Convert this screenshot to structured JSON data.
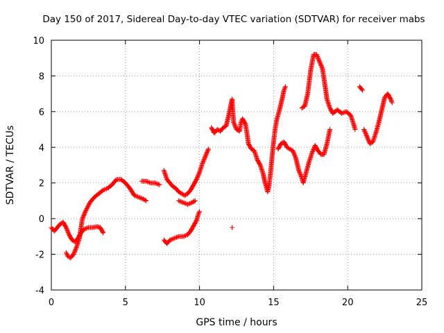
{
  "chart_data": {
    "type": "scatter",
    "title": "Day 150 of 2017, Sidereal Day-to-day VTEC variation (SDTVAR) for receiver mabs",
    "xlabel": "GPS time / hours",
    "ylabel": "SDTVAR / TECUs",
    "xlim": [
      0,
      25
    ],
    "ylim": [
      -4,
      10
    ],
    "xticks": [
      "0",
      "5",
      "10",
      "15",
      "20",
      "25"
    ],
    "yticks": [
      "-4",
      "-2",
      "0",
      "2",
      "4",
      "6",
      "8",
      "10"
    ],
    "grid": true,
    "marker": "+",
    "color": "#ff0000",
    "series": [
      {
        "name": "s1",
        "points": [
          [
            0.0,
            -0.5
          ],
          [
            0.2,
            -0.7
          ],
          [
            0.4,
            -0.5
          ],
          [
            0.6,
            -0.3
          ],
          [
            0.8,
            -0.2
          ],
          [
            1.0,
            -0.5
          ],
          [
            1.2,
            -0.9
          ],
          [
            1.4,
            -1.2
          ],
          [
            1.6,
            -1.3
          ],
          [
            1.8,
            -1.1
          ],
          [
            2.0,
            -0.8
          ],
          [
            2.2,
            -0.6
          ],
          [
            2.5,
            -0.5
          ],
          [
            2.8,
            -0.5
          ],
          [
            3.1,
            -0.45
          ],
          [
            3.3,
            -0.5
          ],
          [
            3.5,
            -0.8
          ]
        ]
      },
      {
        "name": "s2",
        "points": [
          [
            1.0,
            -1.9
          ],
          [
            1.1,
            -2.1
          ],
          [
            1.3,
            -2.2
          ],
          [
            1.5,
            -2.0
          ],
          [
            1.7,
            -1.6
          ],
          [
            1.9,
            -1.1
          ],
          [
            2.0,
            -0.5
          ],
          [
            2.1,
            0.0
          ],
          [
            2.3,
            0.4
          ],
          [
            2.6,
            0.9
          ],
          [
            2.9,
            1.2
          ],
          [
            3.2,
            1.4
          ],
          [
            3.5,
            1.6
          ],
          [
            3.8,
            1.7
          ],
          [
            4.1,
            1.9
          ],
          [
            4.4,
            2.2
          ],
          [
            4.7,
            2.2
          ],
          [
            5.0,
            2.0
          ],
          [
            5.3,
            1.7
          ],
          [
            5.6,
            1.3
          ],
          [
            5.9,
            1.2
          ],
          [
            6.2,
            1.1
          ],
          [
            6.4,
            1.0
          ]
        ]
      },
      {
        "name": "s3",
        "points": [
          [
            6.1,
            2.1
          ],
          [
            6.4,
            2.1
          ],
          [
            6.7,
            2.0
          ],
          [
            7.0,
            2.0
          ],
          [
            7.3,
            1.9
          ]
        ]
      },
      {
        "name": "s4",
        "points": [
          [
            7.6,
            2.7
          ],
          [
            7.8,
            2.2
          ],
          [
            8.0,
            2.0
          ],
          [
            8.2,
            1.8
          ],
          [
            8.4,
            1.7
          ],
          [
            8.6,
            1.5
          ],
          [
            8.8,
            1.4
          ],
          [
            9.0,
            1.3
          ],
          [
            9.2,
            1.4
          ],
          [
            9.4,
            1.6
          ],
          [
            9.6,
            1.9
          ],
          [
            9.8,
            2.2
          ],
          [
            10.0,
            2.6
          ],
          [
            10.2,
            3.1
          ],
          [
            10.4,
            3.5
          ],
          [
            10.6,
            3.9
          ]
        ]
      },
      {
        "name": "s5",
        "points": [
          [
            8.6,
            1.0
          ],
          [
            8.9,
            0.9
          ],
          [
            9.2,
            0.8
          ],
          [
            9.5,
            0.9
          ],
          [
            9.7,
            1.0
          ]
        ]
      },
      {
        "name": "s6",
        "points": [
          [
            7.6,
            -1.2
          ],
          [
            7.8,
            -1.4
          ],
          [
            8.0,
            -1.2
          ],
          [
            8.3,
            -1.1
          ],
          [
            8.6,
            -1.0
          ],
          [
            8.9,
            -1.0
          ],
          [
            9.2,
            -0.9
          ],
          [
            9.4,
            -0.7
          ],
          [
            9.6,
            -0.4
          ],
          [
            9.8,
            -0.1
          ],
          [
            9.9,
            0.2
          ],
          [
            10.0,
            0.4
          ]
        ]
      },
      {
        "name": "s7",
        "points": [
          [
            12.2,
            -0.5
          ]
        ]
      },
      {
        "name": "s8",
        "points": [
          [
            10.8,
            5.1
          ],
          [
            11.0,
            4.8
          ],
          [
            11.2,
            5.0
          ],
          [
            11.4,
            4.9
          ],
          [
            11.6,
            5.1
          ],
          [
            11.8,
            5.2
          ],
          [
            12.0,
            5.9
          ],
          [
            12.1,
            6.3
          ],
          [
            12.2,
            6.7
          ],
          [
            12.3,
            5.4
          ],
          [
            12.5,
            5.0
          ],
          [
            12.7,
            4.9
          ],
          [
            12.8,
            5.4
          ],
          [
            12.9,
            5.6
          ],
          [
            13.1,
            5.3
          ],
          [
            13.2,
            4.8
          ],
          [
            13.3,
            4.2
          ],
          [
            13.5,
            3.9
          ],
          [
            13.7,
            3.8
          ],
          [
            13.9,
            3.3
          ],
          [
            14.1,
            3.0
          ],
          [
            14.3,
            2.5
          ],
          [
            14.4,
            2.1
          ],
          [
            14.5,
            1.8
          ],
          [
            14.6,
            1.5
          ],
          [
            14.7,
            1.9
          ],
          [
            14.8,
            2.6
          ],
          [
            14.9,
            3.5
          ],
          [
            15.0,
            4.3
          ],
          [
            15.1,
            5.0
          ],
          [
            15.2,
            5.5
          ],
          [
            15.4,
            6.1
          ],
          [
            15.6,
            6.8
          ],
          [
            15.7,
            7.2
          ],
          [
            15.8,
            7.4
          ]
        ]
      },
      {
        "name": "s9",
        "points": [
          [
            15.3,
            3.9
          ],
          [
            15.5,
            4.2
          ],
          [
            15.7,
            4.3
          ],
          [
            15.9,
            4.0
          ],
          [
            16.1,
            3.9
          ],
          [
            16.3,
            3.8
          ],
          [
            16.5,
            3.4
          ],
          [
            16.7,
            2.7
          ],
          [
            16.9,
            2.3
          ],
          [
            17.0,
            2.0
          ],
          [
            17.2,
            2.6
          ],
          [
            17.4,
            3.2
          ],
          [
            17.6,
            3.7
          ],
          [
            17.8,
            4.1
          ],
          [
            18.0,
            3.8
          ],
          [
            18.2,
            3.6
          ],
          [
            18.4,
            3.6
          ],
          [
            18.6,
            4.2
          ],
          [
            18.8,
            5.0
          ]
        ]
      },
      {
        "name": "s10",
        "points": [
          [
            16.9,
            6.2
          ],
          [
            17.1,
            6.3
          ],
          [
            17.3,
            7.0
          ],
          [
            17.5,
            8.3
          ],
          [
            17.7,
            9.2
          ],
          [
            17.9,
            9.2
          ],
          [
            18.1,
            8.8
          ],
          [
            18.3,
            8.4
          ],
          [
            18.5,
            7.3
          ],
          [
            18.6,
            6.7
          ],
          [
            18.8,
            6.2
          ],
          [
            19.0,
            5.9
          ],
          [
            19.3,
            6.1
          ],
          [
            19.6,
            5.9
          ],
          [
            19.9,
            6.0
          ],
          [
            20.2,
            5.8
          ],
          [
            20.4,
            5.3
          ],
          [
            20.5,
            5.0
          ]
        ]
      },
      {
        "name": "s11",
        "points": [
          [
            20.8,
            7.4
          ],
          [
            21.0,
            7.2
          ]
        ]
      },
      {
        "name": "s12",
        "points": [
          [
            21.1,
            5.0
          ],
          [
            21.3,
            4.6
          ],
          [
            21.5,
            4.2
          ],
          [
            21.7,
            4.3
          ],
          [
            21.9,
            4.8
          ],
          [
            22.1,
            5.4
          ],
          [
            22.3,
            6.1
          ],
          [
            22.5,
            6.8
          ],
          [
            22.7,
            7.0
          ],
          [
            22.9,
            6.7
          ],
          [
            23.0,
            6.5
          ]
        ]
      }
    ]
  }
}
